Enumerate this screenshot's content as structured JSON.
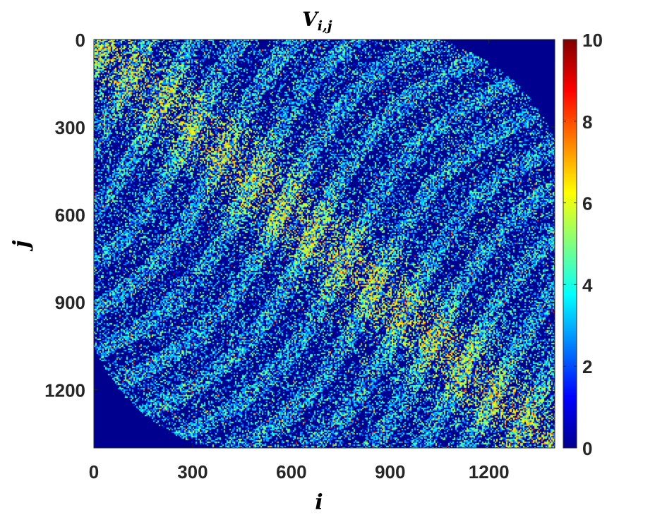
{
  "chart_data": {
    "type": "heatmap",
    "title": "V",
    "title_subscript": "i,j",
    "xlabel": "i",
    "ylabel": "j",
    "x_range": [
      0,
      1400
    ],
    "y_range": [
      0,
      1400
    ],
    "y_reversed": true,
    "x_ticks": [
      "0",
      "300",
      "600",
      "900",
      "1200"
    ],
    "y_ticks": [
      "0",
      "300",
      "600",
      "900",
      "1200"
    ],
    "x_tick_values": [
      0,
      300,
      600,
      900,
      1200
    ],
    "y_tick_values": [
      0,
      300,
      600,
      900,
      1200
    ],
    "colorbar": {
      "range": [
        0,
        10
      ],
      "ticks": [
        "0",
        "2",
        "4",
        "6",
        "8",
        "10"
      ],
      "tick_values": [
        0,
        2,
        4,
        6,
        8,
        10
      ],
      "colormap": "jet"
    },
    "background_color": "#00008f",
    "grid": false
  }
}
